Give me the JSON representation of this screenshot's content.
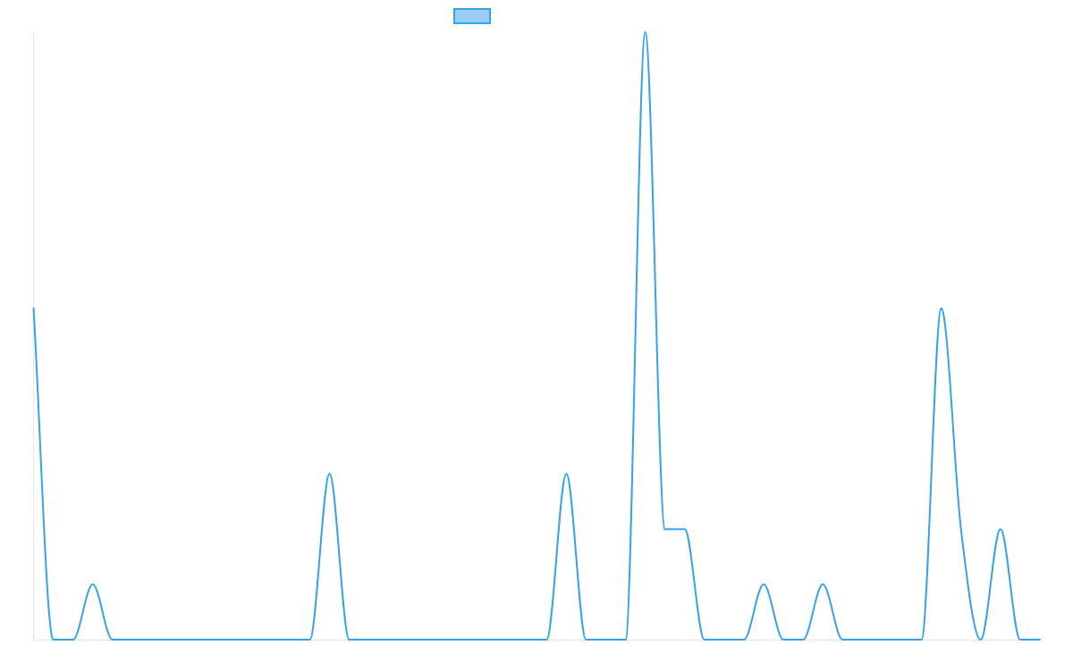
{
  "chart_data": {
    "type": "line",
    "title": "",
    "xlabel": "",
    "ylabel": "",
    "x": [
      0,
      0.5,
      1,
      1.5,
      2,
      2.5,
      3,
      3.5,
      4,
      4.5,
      5,
      5.5,
      6,
      6.5,
      7,
      7.5,
      8,
      8.5,
      9,
      9.5,
      10,
      10.5,
      11,
      11.5,
      12,
      12.5,
      13,
      13.5,
      14,
      14.5,
      15,
      15.5,
      16,
      16.5,
      17,
      17.5,
      18,
      18.5,
      19,
      19.5,
      20,
      20.5,
      21,
      21.5,
      22,
      22.5,
      23,
      23.5,
      24,
      24.5,
      25,
      25.5
    ],
    "series": [
      {
        "name": "",
        "color": "#36a2eb",
        "fill": "#9ad0f5",
        "values": [
          6,
          0,
          0,
          1,
          0,
          0,
          0,
          0,
          0,
          0,
          0,
          0,
          0,
          0,
          0,
          3,
          0,
          0,
          0,
          0,
          0,
          0,
          0,
          0,
          0,
          0,
          0,
          3,
          0,
          0,
          0,
          11,
          2,
          2,
          0,
          0,
          0,
          1,
          0,
          0,
          1,
          0,
          0,
          0,
          0,
          0,
          6,
          2,
          0,
          2,
          0,
          0
        ]
      }
    ],
    "xlim": [
      0,
      25.5
    ],
    "ylim": [
      0,
      11
    ],
    "grid": false,
    "legend": {
      "position": "top-center"
    }
  }
}
